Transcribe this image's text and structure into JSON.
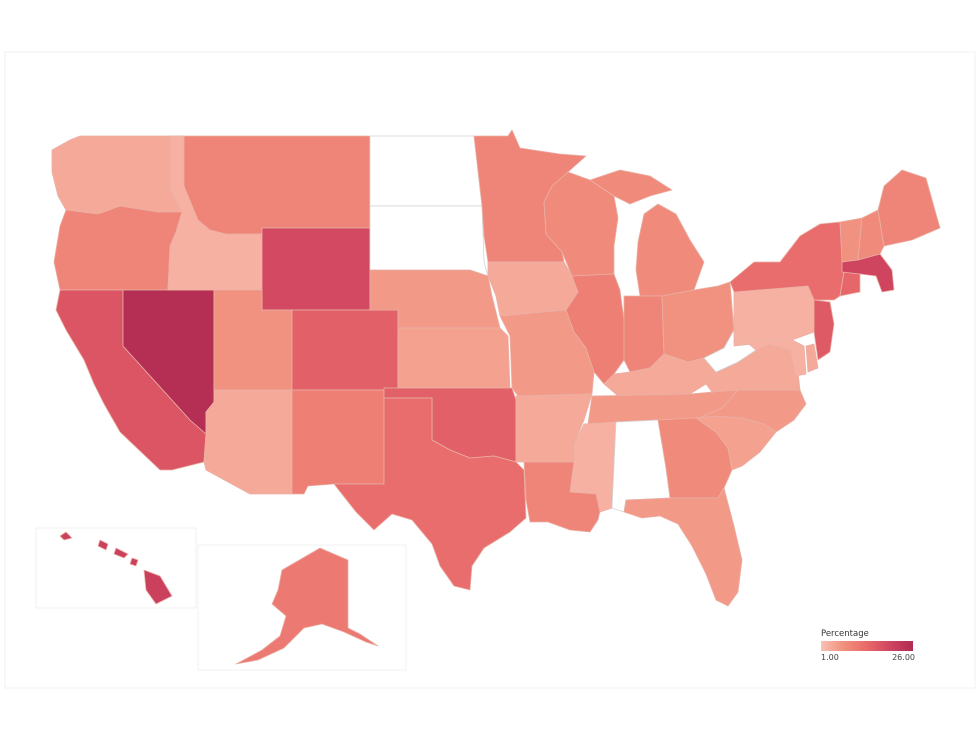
{
  "legend": {
    "title": "Percentage",
    "min_label": "1.00",
    "max_label": "26.00",
    "color_low": "#f9c1b3",
    "color_high": "#b02a52"
  },
  "map_type": "choropleth",
  "region": "United States",
  "states": [
    {
      "abbr": "WA",
      "value": 4
    },
    {
      "abbr": "OR",
      "value": 9
    },
    {
      "abbr": "CA",
      "value": 17
    },
    {
      "abbr": "NV",
      "value": 25
    },
    {
      "abbr": "ID",
      "value": 3
    },
    {
      "abbr": "MT",
      "value": 9
    },
    {
      "abbr": "WY",
      "value": 19
    },
    {
      "abbr": "UT",
      "value": 7
    },
    {
      "abbr": "CO",
      "value": 15
    },
    {
      "abbr": "AZ",
      "value": 4
    },
    {
      "abbr": "NM",
      "value": 10
    },
    {
      "abbr": "ND",
      "value": null
    },
    {
      "abbr": "SD",
      "value": null
    },
    {
      "abbr": "NE",
      "value": 6
    },
    {
      "abbr": "KS",
      "value": 5
    },
    {
      "abbr": "OK",
      "value": 15
    },
    {
      "abbr": "TX",
      "value": 13
    },
    {
      "abbr": "MN",
      "value": 9
    },
    {
      "abbr": "IA",
      "value": 4
    },
    {
      "abbr": "MO",
      "value": 6
    },
    {
      "abbr": "AR",
      "value": 4
    },
    {
      "abbr": "LA",
      "value": 9
    },
    {
      "abbr": "WI",
      "value": 8
    },
    {
      "abbr": "IL",
      "value": 10
    },
    {
      "abbr": "MI",
      "value": 8
    },
    {
      "abbr": "IN",
      "value": 9
    },
    {
      "abbr": "OH",
      "value": 7
    },
    {
      "abbr": "KY",
      "value": 4
    },
    {
      "abbr": "TN",
      "value": 6
    },
    {
      "abbr": "MS",
      "value": 3
    },
    {
      "abbr": "AL",
      "value": null
    },
    {
      "abbr": "GA",
      "value": 8
    },
    {
      "abbr": "FL",
      "value": 6
    },
    {
      "abbr": "SC",
      "value": 5
    },
    {
      "abbr": "NC",
      "value": 6
    },
    {
      "abbr": "VA",
      "value": 4
    },
    {
      "abbr": "WV",
      "value": null
    },
    {
      "abbr": "PA",
      "value": 3
    },
    {
      "abbr": "NY",
      "value": 13
    },
    {
      "abbr": "VT",
      "value": 7
    },
    {
      "abbr": "NH",
      "value": 8
    },
    {
      "abbr": "ME",
      "value": 9
    },
    {
      "abbr": "MA",
      "value": 20
    },
    {
      "abbr": "CT",
      "value": 14
    },
    {
      "abbr": "NJ",
      "value": 16
    },
    {
      "abbr": "MD",
      "value": 3
    },
    {
      "abbr": "DE",
      "value": 4
    },
    {
      "abbr": "AK",
      "value": 11
    },
    {
      "abbr": "HI",
      "value": 21
    }
  ]
}
